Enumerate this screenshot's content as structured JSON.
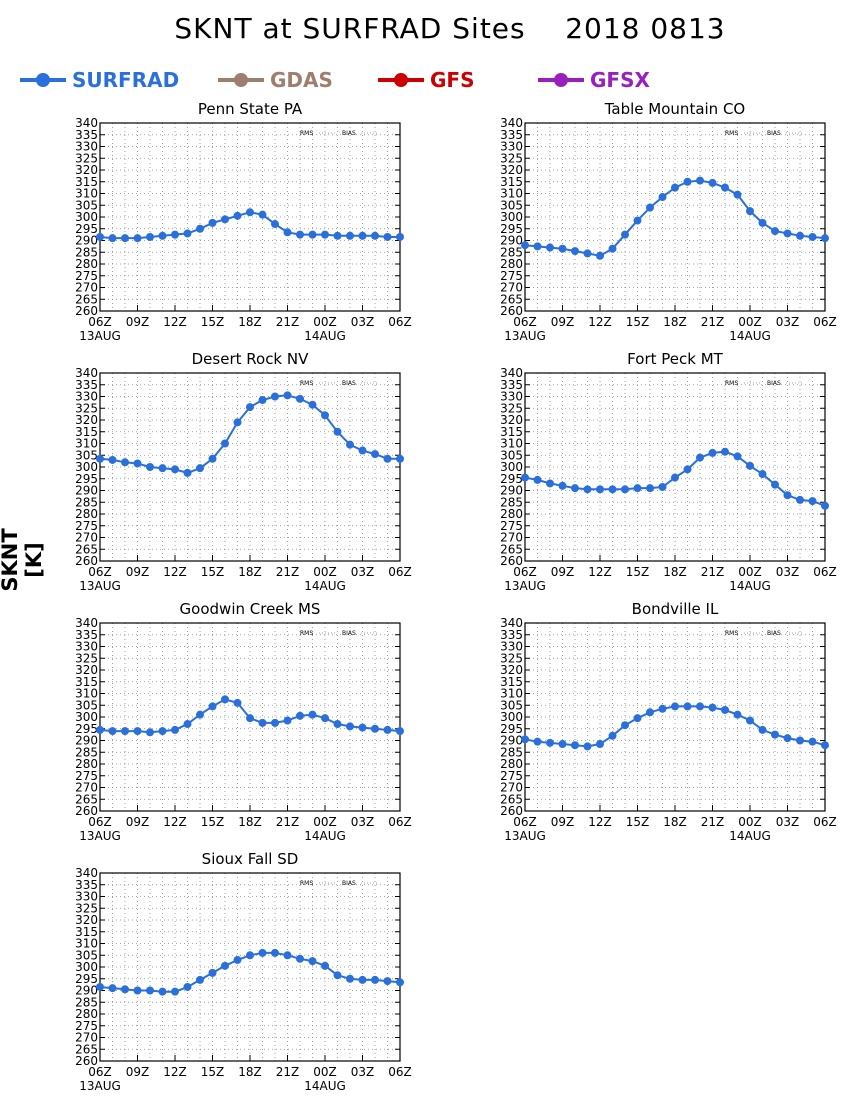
{
  "title": "SKNT at SURFRAD Sites    2018 0813",
  "ylabel": "SKNT [K]",
  "legend": [
    {
      "name": "SURFRAD",
      "color": "#2a6fdb"
    },
    {
      "name": "GDAS",
      "color": "#a07e6e"
    },
    {
      "name": "GFS",
      "color": "#cc0000"
    },
    {
      "name": "GFSX",
      "color": "#9a1fbf"
    }
  ],
  "panel_legend": {
    "rms": "RMS",
    "bias": "BIAS"
  },
  "chart_data": [
    {
      "type": "line",
      "title": "Penn State PA",
      "xlabel": "",
      "ylabel": "SKNT [K]",
      "ylim": [
        260,
        340
      ],
      "yticks": [
        260,
        265,
        270,
        275,
        280,
        285,
        290,
        295,
        300,
        305,
        310,
        315,
        320,
        325,
        330,
        335,
        340
      ],
      "xlim": [
        0,
        24
      ],
      "xtick_labels": [
        "06Z",
        "09Z",
        "12Z",
        "15Z",
        "18Z",
        "21Z",
        "00Z",
        "03Z",
        "06Z"
      ],
      "date_labels": [
        {
          "text": "13AUG",
          "x": 0
        },
        {
          "text": "14AUG",
          "x": 18
        }
      ],
      "x": [
        0,
        1,
        2,
        3,
        4,
        5,
        6,
        7,
        8,
        9,
        10,
        11,
        12,
        13,
        14,
        15,
        16,
        17,
        18,
        19,
        20,
        21,
        22,
        23,
        24
      ],
      "series": [
        {
          "name": "SURFRAD",
          "values": [
            291.5,
            291,
            291,
            291,
            291.5,
            292,
            292.5,
            293,
            295,
            297.5,
            299,
            300.5,
            302,
            301,
            297,
            293.5,
            292.5,
            292.5,
            292.5,
            292,
            292,
            292,
            292,
            291.5,
            291.5
          ]
        }
      ]
    },
    {
      "type": "line",
      "title": "Table Mountain CO",
      "xlabel": "",
      "ylabel": "SKNT [K]",
      "ylim": [
        260,
        340
      ],
      "yticks": [
        260,
        265,
        270,
        275,
        280,
        285,
        290,
        295,
        300,
        305,
        310,
        315,
        320,
        325,
        330,
        335,
        340
      ],
      "xlim": [
        0,
        24
      ],
      "xtick_labels": [
        "06Z",
        "09Z",
        "12Z",
        "15Z",
        "18Z",
        "21Z",
        "00Z",
        "03Z",
        "06Z"
      ],
      "date_labels": [
        {
          "text": "13AUG",
          "x": 0
        },
        {
          "text": "14AUG",
          "x": 18
        }
      ],
      "x": [
        0,
        1,
        2,
        3,
        4,
        5,
        6,
        7,
        8,
        9,
        10,
        11,
        12,
        13,
        14,
        15,
        16,
        17,
        18,
        19,
        20,
        21,
        22,
        23,
        24
      ],
      "series": [
        {
          "name": "SURFRAD",
          "values": [
            288,
            287.5,
            287,
            286.5,
            285.5,
            284.5,
            283.5,
            286.5,
            292.5,
            298.5,
            304,
            308.5,
            312.5,
            315,
            315.5,
            314.5,
            312.5,
            309.5,
            302.5,
            297.5,
            294,
            293,
            292,
            291.5,
            291
          ]
        }
      ]
    },
    {
      "type": "line",
      "title": "Desert Rock NV",
      "xlabel": "",
      "ylabel": "SKNT [K]",
      "ylim": [
        260,
        340
      ],
      "yticks": [
        260,
        265,
        270,
        275,
        280,
        285,
        290,
        295,
        300,
        305,
        310,
        315,
        320,
        325,
        330,
        335,
        340
      ],
      "xlim": [
        0,
        24
      ],
      "xtick_labels": [
        "06Z",
        "09Z",
        "12Z",
        "15Z",
        "18Z",
        "21Z",
        "00Z",
        "03Z",
        "06Z"
      ],
      "date_labels": [
        {
          "text": "13AUG",
          "x": 0
        },
        {
          "text": "14AUG",
          "x": 18
        }
      ],
      "x": [
        0,
        1,
        2,
        3,
        4,
        5,
        6,
        7,
        8,
        9,
        10,
        11,
        12,
        13,
        14,
        15,
        16,
        17,
        18,
        19,
        20,
        21,
        22,
        23,
        24
      ],
      "series": [
        {
          "name": "SURFRAD",
          "values": [
            303.5,
            303,
            302,
            301.5,
            300,
            299.5,
            299,
            297.5,
            299.5,
            303.5,
            310,
            319,
            325.5,
            328.5,
            330,
            330.5,
            329,
            326.5,
            322,
            315,
            309.5,
            307,
            305.5,
            303.5,
            303.5
          ]
        }
      ]
    },
    {
      "type": "line",
      "title": "Fort Peck MT",
      "xlabel": "",
      "ylabel": "SKNT [K]",
      "ylim": [
        260,
        340
      ],
      "yticks": [
        260,
        265,
        270,
        275,
        280,
        285,
        290,
        295,
        300,
        305,
        310,
        315,
        320,
        325,
        330,
        335,
        340
      ],
      "xlim": [
        0,
        24
      ],
      "xtick_labels": [
        "06Z",
        "09Z",
        "12Z",
        "15Z",
        "18Z",
        "21Z",
        "00Z",
        "03Z",
        "06Z"
      ],
      "date_labels": [
        {
          "text": "13AUG",
          "x": 0
        },
        {
          "text": "14AUG",
          "x": 18
        }
      ],
      "x": [
        0,
        1,
        2,
        3,
        4,
        5,
        6,
        7,
        8,
        9,
        10,
        11,
        12,
        13,
        14,
        15,
        16,
        17,
        18,
        19,
        20,
        21,
        22,
        23,
        24
      ],
      "series": [
        {
          "name": "SURFRAD",
          "values": [
            295.5,
            294.5,
            293,
            292,
            291,
            290.5,
            290.5,
            290.5,
            290.5,
            291,
            291,
            291.5,
            295.5,
            299,
            304,
            306,
            306.5,
            304.5,
            300.5,
            297,
            292.5,
            288,
            286,
            285.5,
            283.5
          ]
        }
      ]
    },
    {
      "type": "line",
      "title": "Goodwin Creek MS",
      "xlabel": "",
      "ylabel": "SKNT [K]",
      "ylim": [
        260,
        340
      ],
      "yticks": [
        260,
        265,
        270,
        275,
        280,
        285,
        290,
        295,
        300,
        305,
        310,
        315,
        320,
        325,
        330,
        335,
        340
      ],
      "xlim": [
        0,
        24
      ],
      "xtick_labels": [
        "06Z",
        "09Z",
        "12Z",
        "15Z",
        "18Z",
        "21Z",
        "00Z",
        "03Z",
        "06Z"
      ],
      "date_labels": [
        {
          "text": "13AUG",
          "x": 0
        },
        {
          "text": "14AUG",
          "x": 18
        }
      ],
      "x": [
        0,
        1,
        2,
        3,
        4,
        5,
        6,
        7,
        8,
        9,
        10,
        11,
        12,
        13,
        14,
        15,
        16,
        17,
        18,
        19,
        20,
        21,
        22,
        23,
        24
      ],
      "series": [
        {
          "name": "SURFRAD",
          "values": [
            294.5,
            294,
            294,
            294,
            293.5,
            294,
            294.5,
            297,
            301,
            304.5,
            307.5,
            306,
            299.5,
            297.5,
            297.5,
            298.5,
            300.5,
            301,
            299.5,
            297,
            296,
            295.5,
            295,
            294.5,
            294
          ]
        }
      ]
    },
    {
      "type": "line",
      "title": "Bondville IL",
      "xlabel": "",
      "ylabel": "SKNT [K]",
      "ylim": [
        260,
        340
      ],
      "yticks": [
        260,
        265,
        270,
        275,
        280,
        285,
        290,
        295,
        300,
        305,
        310,
        315,
        320,
        325,
        330,
        335,
        340
      ],
      "xlim": [
        0,
        24
      ],
      "xtick_labels": [
        "06Z",
        "09Z",
        "12Z",
        "15Z",
        "18Z",
        "21Z",
        "00Z",
        "03Z",
        "06Z"
      ],
      "date_labels": [
        {
          "text": "13AUG",
          "x": 0
        },
        {
          "text": "14AUG",
          "x": 18
        }
      ],
      "x": [
        0,
        1,
        2,
        3,
        4,
        5,
        6,
        7,
        8,
        9,
        10,
        11,
        12,
        13,
        14,
        15,
        16,
        17,
        18,
        19,
        20,
        21,
        22,
        23,
        24
      ],
      "series": [
        {
          "name": "SURFRAD",
          "values": [
            290.5,
            289.5,
            289,
            288.5,
            288,
            287.5,
            288.5,
            292,
            296.5,
            299.5,
            302,
            303.5,
            304.5,
            304.5,
            304.5,
            304,
            303,
            301,
            298.5,
            294.5,
            292.5,
            291,
            290,
            289.5,
            288
          ]
        }
      ]
    },
    {
      "type": "line",
      "title": "Sioux Fall SD",
      "xlabel": "",
      "ylabel": "SKNT [K]",
      "ylim": [
        260,
        340
      ],
      "yticks": [
        260,
        265,
        270,
        275,
        280,
        285,
        290,
        295,
        300,
        305,
        310,
        315,
        320,
        325,
        330,
        335,
        340
      ],
      "xlim": [
        0,
        24
      ],
      "xtick_labels": [
        "06Z",
        "09Z",
        "12Z",
        "15Z",
        "18Z",
        "21Z",
        "00Z",
        "03Z",
        "06Z"
      ],
      "date_labels": [
        {
          "text": "13AUG",
          "x": 0
        },
        {
          "text": "14AUG",
          "x": 18
        }
      ],
      "x": [
        0,
        1,
        2,
        3,
        4,
        5,
        6,
        7,
        8,
        9,
        10,
        11,
        12,
        13,
        14,
        15,
        16,
        17,
        18,
        19,
        20,
        21,
        22,
        23,
        24
      ],
      "series": [
        {
          "name": "SURFRAD",
          "values": [
            291.5,
            291,
            290.5,
            290,
            290,
            289.5,
            289.5,
            291.5,
            294.5,
            297.5,
            300.5,
            303,
            305,
            306,
            306,
            305,
            303.5,
            302.5,
            300.5,
            296.5,
            295,
            294.5,
            294.5,
            294,
            293.5
          ]
        }
      ]
    }
  ]
}
